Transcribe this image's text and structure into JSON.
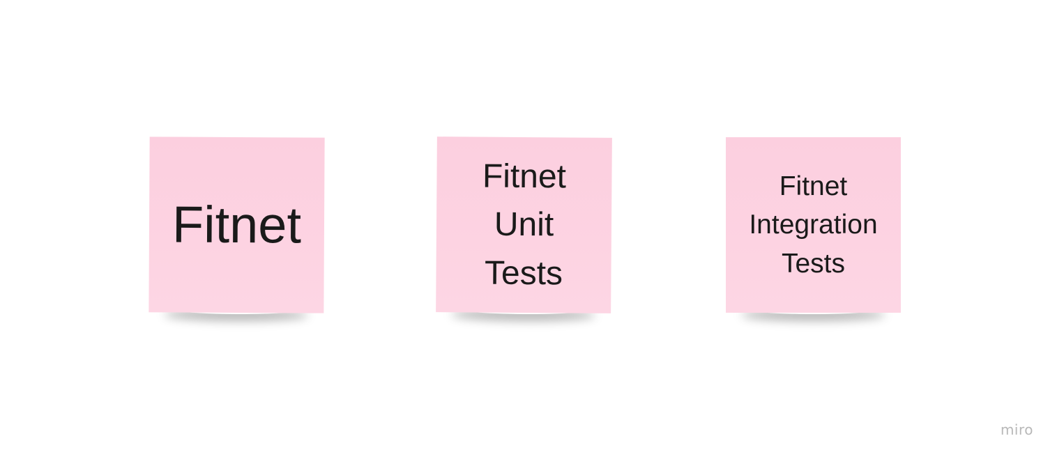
{
  "board": {
    "background_color": "#ffffff",
    "sticky_color": "#fdd3e2",
    "notes": [
      {
        "text": "Fitnet"
      },
      {
        "text": "Fitnet\nUnit\nTests"
      },
      {
        "text": "Fitnet\nIntegration\nTests"
      }
    ]
  },
  "watermark": {
    "text": "miro"
  }
}
